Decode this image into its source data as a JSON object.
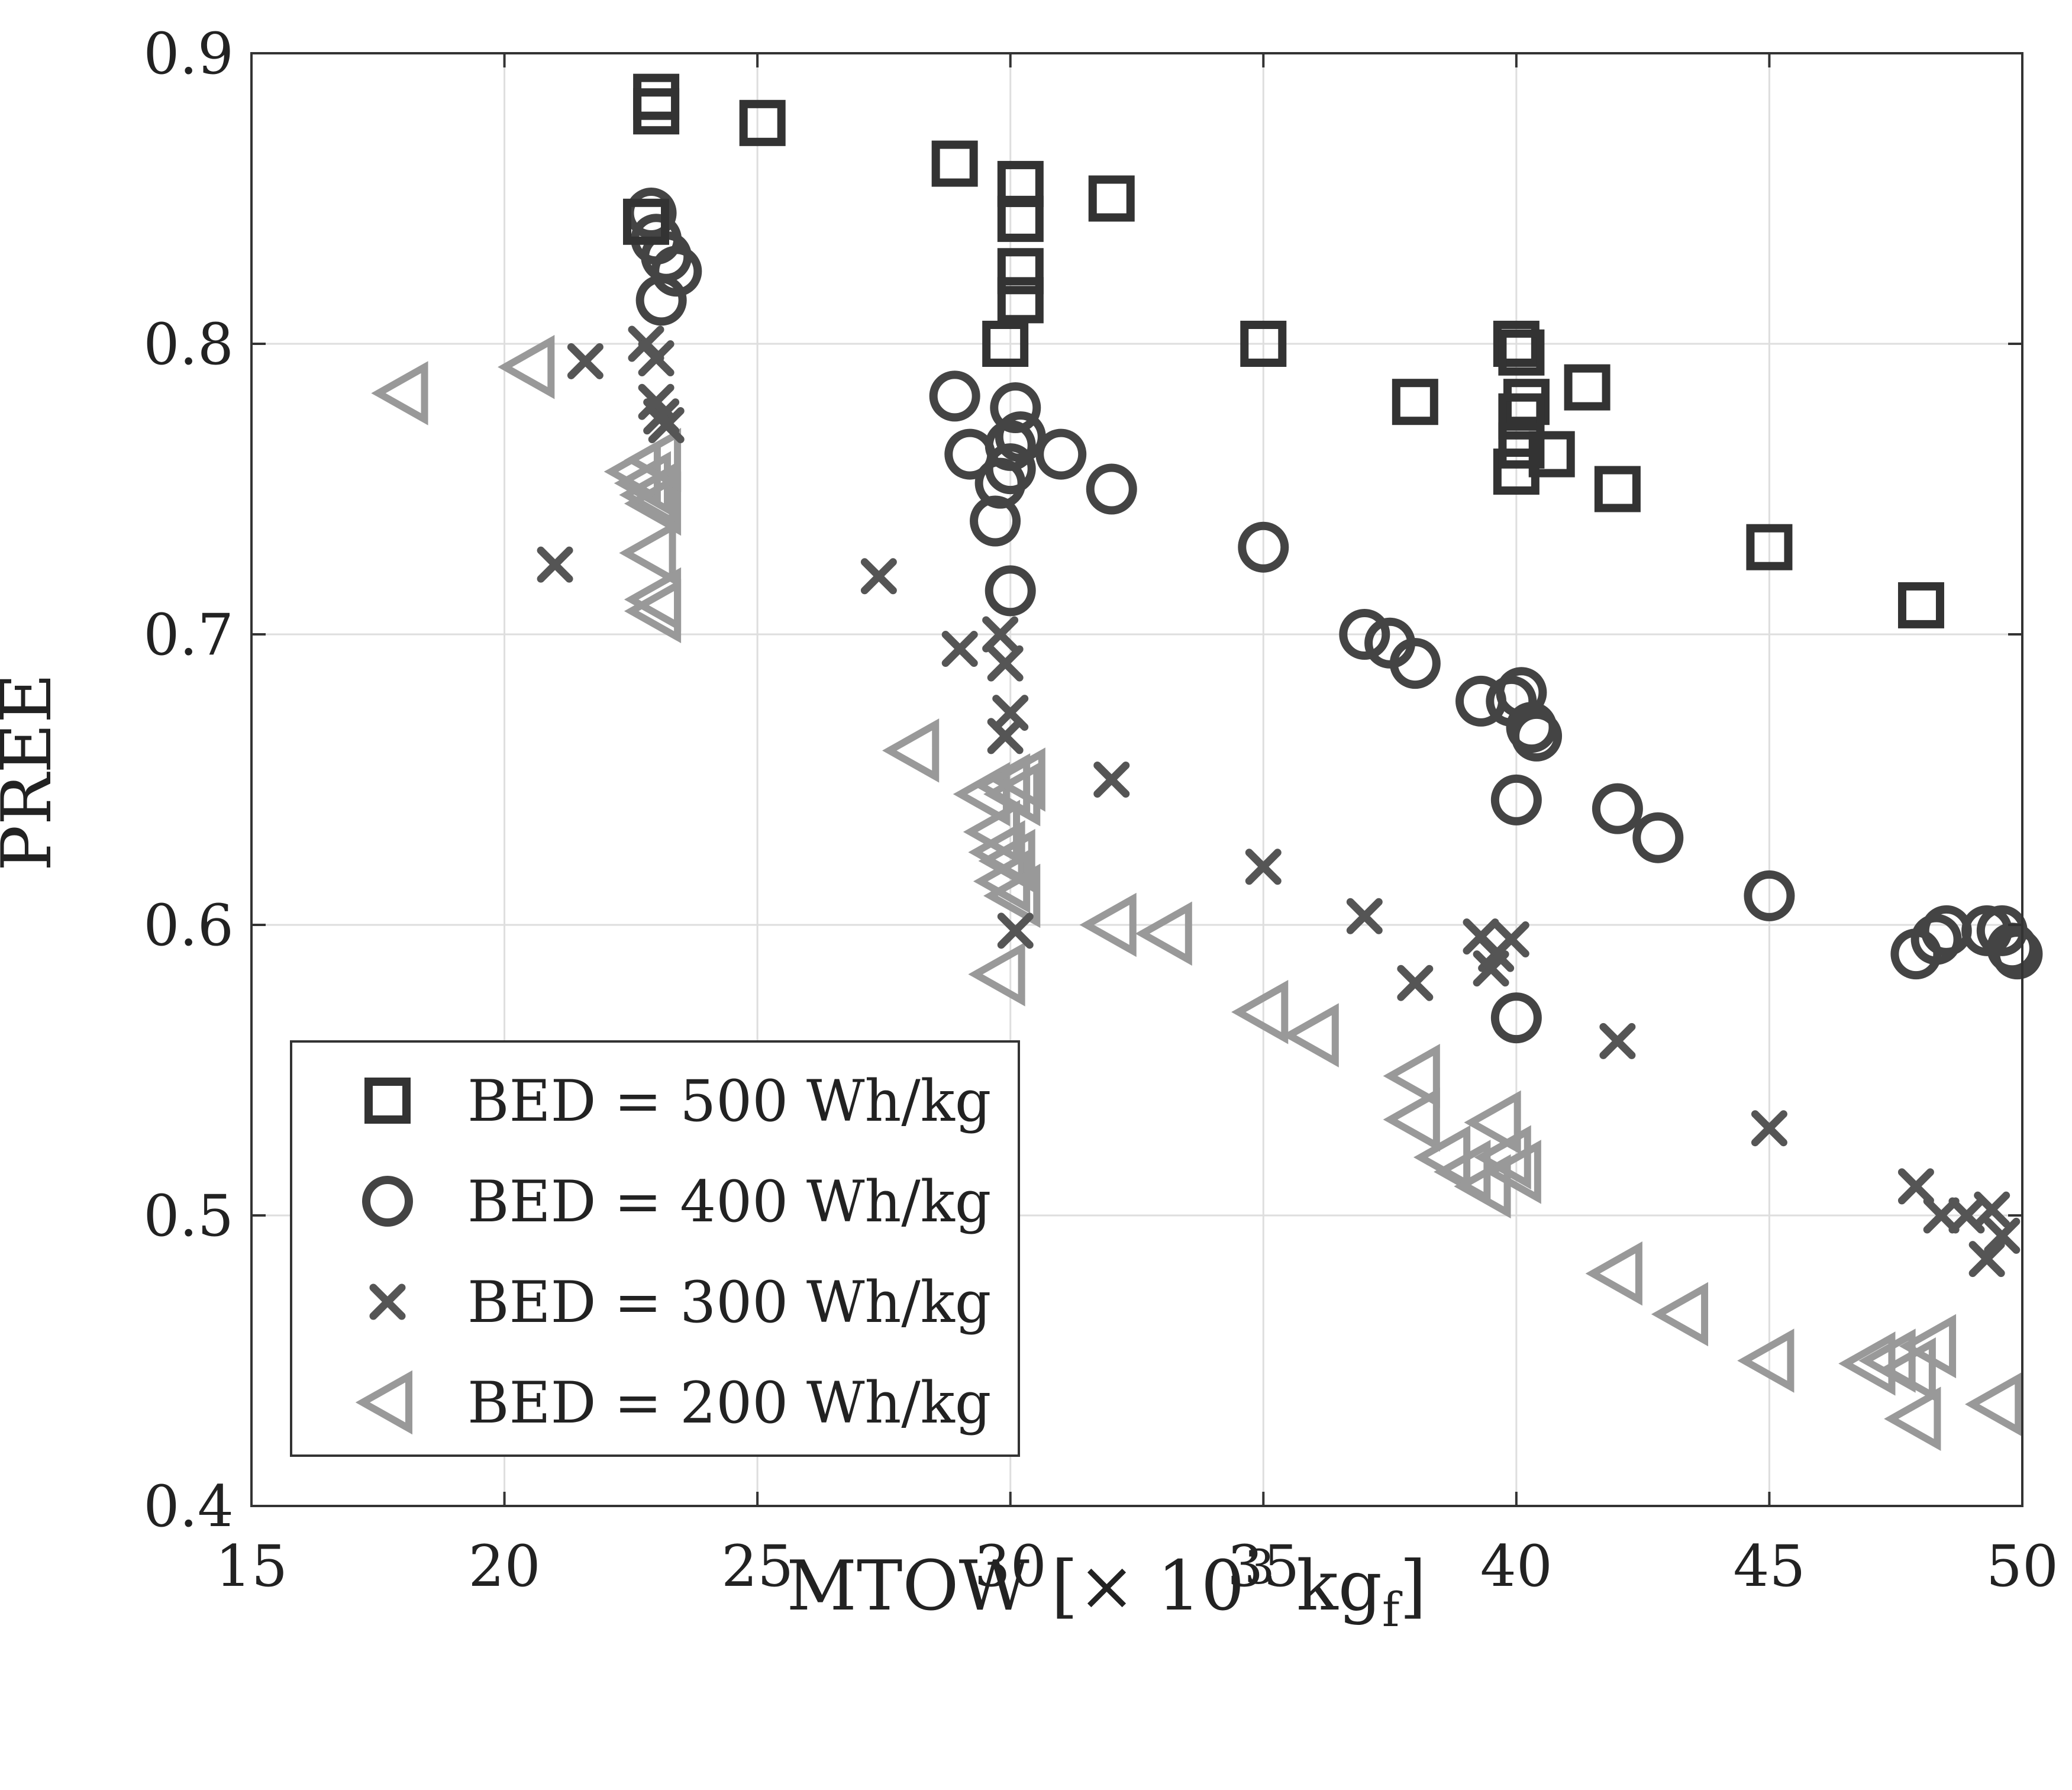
{
  "chart_data": {
    "type": "scatter",
    "xlabel": "MTOW [× 10",
    "xlabel_sup": "3",
    "xlabel_unit": " kg",
    "xlabel_sub": "f",
    "xlabel_close": "]",
    "ylabel": "PREE",
    "xlim": [
      15,
      50
    ],
    "ylim": [
      0.4,
      0.9
    ],
    "xticks": [
      "15",
      "20",
      "25",
      "30",
      "35",
      "40",
      "45",
      "50"
    ],
    "yticks": [
      "0.4",
      "0.5",
      "0.6",
      "0.7",
      "0.8",
      "0.9"
    ],
    "grid": true,
    "legend_position": "bottom-left",
    "series": [
      {
        "name": "BED = 500 Wh/kg",
        "marker": "square",
        "color": "#333333",
        "points": [
          [
            23.0,
            0.885
          ],
          [
            23.0,
            0.88
          ],
          [
            22.8,
            0.842
          ],
          [
            25.1,
            0.876
          ],
          [
            28.9,
            0.862
          ],
          [
            30.2,
            0.855
          ],
          [
            30.2,
            0.843
          ],
          [
            30.2,
            0.825
          ],
          [
            30.2,
            0.815
          ],
          [
            29.9,
            0.8
          ],
          [
            32.0,
            0.85
          ],
          [
            35.0,
            0.8
          ],
          [
            38.0,
            0.78
          ],
          [
            40.0,
            0.8
          ],
          [
            40.1,
            0.797
          ],
          [
            40.2,
            0.78
          ],
          [
            40.1,
            0.775
          ],
          [
            40.0,
            0.756
          ],
          [
            40.1,
            0.765
          ],
          [
            40.7,
            0.762
          ],
          [
            41.4,
            0.785
          ],
          [
            42.0,
            0.75
          ],
          [
            45.0,
            0.73
          ],
          [
            48.0,
            0.71
          ]
        ]
      },
      {
        "name": "BED = 400 Wh/kg",
        "marker": "circle",
        "color": "#444444",
        "points": [
          [
            22.9,
            0.845
          ],
          [
            23.0,
            0.836
          ],
          [
            23.2,
            0.83
          ],
          [
            23.4,
            0.825
          ],
          [
            23.1,
            0.815
          ],
          [
            28.9,
            0.782
          ],
          [
            29.2,
            0.762
          ],
          [
            29.7,
            0.739
          ],
          [
            29.8,
            0.752
          ],
          [
            30.0,
            0.765
          ],
          [
            30.1,
            0.778
          ],
          [
            30.2,
            0.768
          ],
          [
            30.0,
            0.757
          ],
          [
            31.0,
            0.762
          ],
          [
            32.0,
            0.75
          ],
          [
            30.0,
            0.715
          ],
          [
            35.0,
            0.73
          ],
          [
            37.0,
            0.7
          ],
          [
            37.5,
            0.697
          ],
          [
            38.0,
            0.69
          ],
          [
            39.3,
            0.677
          ],
          [
            39.9,
            0.677
          ],
          [
            40.1,
            0.68
          ],
          [
            40.3,
            0.668
          ],
          [
            40.4,
            0.665
          ],
          [
            40.0,
            0.643
          ],
          [
            42.0,
            0.64
          ],
          [
            42.8,
            0.63
          ],
          [
            45.0,
            0.61
          ],
          [
            40.0,
            0.568
          ],
          [
            47.9,
            0.59
          ],
          [
            48.3,
            0.595
          ],
          [
            48.5,
            0.598
          ],
          [
            49.3,
            0.598
          ],
          [
            49.6,
            0.598
          ],
          [
            49.8,
            0.592
          ],
          [
            49.9,
            0.59
          ]
        ]
      },
      {
        "name": "BED = 300 Wh/kg",
        "marker": "x",
        "color": "#555555",
        "points": [
          [
            21.6,
            0.794
          ],
          [
            21.0,
            0.724
          ],
          [
            22.8,
            0.8
          ],
          [
            23.0,
            0.795
          ],
          [
            23.0,
            0.78
          ],
          [
            23.1,
            0.775
          ],
          [
            23.2,
            0.772
          ],
          [
            27.4,
            0.72
          ],
          [
            29.0,
            0.695
          ],
          [
            29.8,
            0.7
          ],
          [
            29.9,
            0.69
          ],
          [
            30.0,
            0.673
          ],
          [
            29.9,
            0.665
          ],
          [
            30.1,
            0.598
          ],
          [
            32.0,
            0.65
          ],
          [
            35.0,
            0.62
          ],
          [
            37.0,
            0.603
          ],
          [
            38.0,
            0.58
          ],
          [
            39.3,
            0.596
          ],
          [
            39.6,
            0.59
          ],
          [
            39.5,
            0.585
          ],
          [
            39.9,
            0.595
          ],
          [
            42.0,
            0.56
          ],
          [
            45.0,
            0.53
          ],
          [
            47.9,
            0.51
          ],
          [
            48.4,
            0.5
          ],
          [
            48.9,
            0.5
          ],
          [
            49.4,
            0.502
          ],
          [
            49.6,
            0.493
          ],
          [
            49.3,
            0.485
          ]
        ]
      },
      {
        "name": "BED = 200 Wh/kg",
        "marker": "triangle-left",
        "color": "#999999",
        "points": [
          [
            18.0,
            0.783
          ],
          [
            20.5,
            0.792
          ],
          [
            22.6,
            0.756
          ],
          [
            22.8,
            0.752
          ],
          [
            22.9,
            0.748
          ],
          [
            23.0,
            0.745
          ],
          [
            23.0,
            0.76
          ],
          [
            22.9,
            0.728
          ],
          [
            23.0,
            0.712
          ],
          [
            23.0,
            0.708
          ],
          [
            28.1,
            0.66
          ],
          [
            29.5,
            0.645
          ],
          [
            29.9,
            0.648
          ],
          [
            30.1,
            0.645
          ],
          [
            30.2,
            0.65
          ],
          [
            29.7,
            0.632
          ],
          [
            29.8,
            0.625
          ],
          [
            30.0,
            0.622
          ],
          [
            29.9,
            0.615
          ],
          [
            30.1,
            0.61
          ],
          [
            29.8,
            0.583
          ],
          [
            32.0,
            0.6
          ],
          [
            33.1,
            0.597
          ],
          [
            35.0,
            0.57
          ],
          [
            36.0,
            0.562
          ],
          [
            38.0,
            0.548
          ],
          [
            38.0,
            0.533
          ],
          [
            38.6,
            0.52
          ],
          [
            39.0,
            0.515
          ],
          [
            39.4,
            0.51
          ],
          [
            39.6,
            0.532
          ],
          [
            39.8,
            0.52
          ],
          [
            40.0,
            0.515
          ],
          [
            42.0,
            0.48
          ],
          [
            43.3,
            0.466
          ],
          [
            45.0,
            0.45
          ],
          [
            47.0,
            0.449
          ],
          [
            47.4,
            0.45
          ],
          [
            47.8,
            0.447
          ],
          [
            48.2,
            0.455
          ],
          [
            47.9,
            0.43
          ],
          [
            49.5,
            0.435
          ]
        ]
      }
    ]
  }
}
